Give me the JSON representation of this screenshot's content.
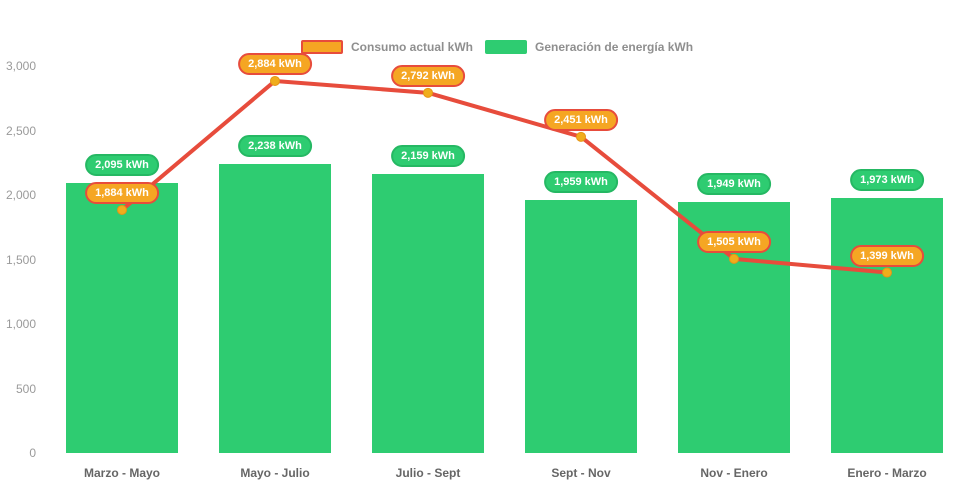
{
  "legend": {
    "items": [
      {
        "label": "Consumo actual kWh",
        "swatch_fill": "#f5a623",
        "swatch_border": "#e74c3c"
      },
      {
        "label": "Generación de energía kWh",
        "swatch_fill": "#2ecc71",
        "swatch_border": "#2ecc71"
      }
    ]
  },
  "colors": {
    "background": "#ffffff",
    "bar": "#2ecc71",
    "bar_badge_fill": "#2ecc71",
    "bar_badge_border": "#25b863",
    "line": "#e74c3c",
    "marker": "#f0ad1c",
    "line_badge_fill": "#f5a623",
    "line_badge_border": "#e74c3c",
    "axis_text": "#9a9a9a",
    "xlabel_text": "#666666",
    "legend_text": "#8f8f8f"
  },
  "chart_data": {
    "type": "bar",
    "title": "",
    "xlabel": "",
    "ylabel": "",
    "categories": [
      "Marzo - Mayo",
      "Mayo - Julio",
      "Julio - Sept",
      "Sept - Nov",
      "Nov - Enero",
      "Enero - Marzo"
    ],
    "series": [
      {
        "name": "Consumo actual kWh",
        "type": "line",
        "color": "#e74c3c",
        "values": [
          1884,
          2884,
          2792,
          2451,
          1505,
          1399
        ],
        "labels": [
          "1,884 kWh",
          "2,884 kWh",
          "2,792 kWh",
          "2,451 kWh",
          "1,505 kWh",
          "1,399 kWh"
        ]
      },
      {
        "name": "Generación de energía kWh",
        "type": "bar",
        "color": "#2ecc71",
        "values": [
          2095,
          2238,
          2159,
          1959,
          1949,
          1973
        ],
        "labels": [
          "2,095 kWh",
          "2,238 kWh",
          "2,159 kWh",
          "1,959 kWh",
          "1,949 kWh",
          "1,973 kWh"
        ]
      }
    ],
    "ylim": [
      0,
      3000
    ],
    "ytick_values": [
      0,
      500,
      1000,
      1500,
      2000,
      2500,
      3000
    ],
    "ytick_labels": [
      "0",
      "500",
      "1,000",
      "1,500",
      "2,000",
      "2,500",
      "3,000"
    ],
    "grid": false,
    "legend_position": "top"
  }
}
